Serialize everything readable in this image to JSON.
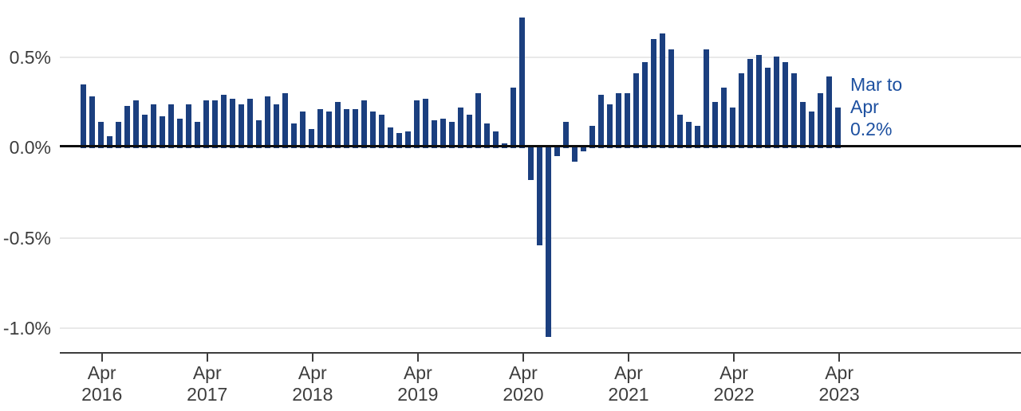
{
  "chart_data": {
    "type": "bar",
    "title": "",
    "unit": "%",
    "x": [
      "Feb 2016",
      "Mar 2016",
      "Apr 2016",
      "May 2016",
      "Jun 2016",
      "Jul 2016",
      "Aug 2016",
      "Sep 2016",
      "Oct 2016",
      "Nov 2016",
      "Dec 2016",
      "Jan 2017",
      "Feb 2017",
      "Mar 2017",
      "Apr 2017",
      "May 2017",
      "Jun 2017",
      "Jul 2017",
      "Aug 2017",
      "Sep 2017",
      "Oct 2017",
      "Nov 2017",
      "Dec 2017",
      "Jan 2018",
      "Feb 2018",
      "Mar 2018",
      "Apr 2018",
      "May 2018",
      "Jun 2018",
      "Jul 2018",
      "Aug 2018",
      "Sep 2018",
      "Oct 2018",
      "Nov 2018",
      "Dec 2018",
      "Jan 2019",
      "Feb 2019",
      "Mar 2019",
      "Apr 2019",
      "May 2019",
      "Jun 2019",
      "Jul 2019",
      "Aug 2019",
      "Sep 2019",
      "Oct 2019",
      "Nov 2019",
      "Dec 2019",
      "Jan 2020",
      "Feb 2020",
      "Mar 2020",
      "Apr 2020",
      "May 2020",
      "Jun 2020",
      "Jul 2020",
      "Aug 2020",
      "Sep 2020",
      "Oct 2020",
      "Nov 2020",
      "Dec 2020",
      "Jan 2021",
      "Feb 2021",
      "Mar 2021",
      "Apr 2021",
      "May 2021",
      "Jun 2021",
      "Jul 2021",
      "Aug 2021",
      "Sep 2021",
      "Oct 2021",
      "Nov 2021",
      "Dec 2021",
      "Jan 2022",
      "Feb 2022",
      "Mar 2022",
      "Apr 2022",
      "May 2022",
      "Jun 2022",
      "Jul 2022",
      "Aug 2022",
      "Sep 2022",
      "Oct 2022",
      "Nov 2022",
      "Dec 2022",
      "Jan 2023",
      "Feb 2023",
      "Mar 2023",
      "Apr 2023"
    ],
    "values": [
      0.35,
      0.28,
      0.14,
      0.06,
      0.14,
      0.23,
      0.26,
      0.18,
      0.24,
      0.17,
      0.24,
      0.16,
      0.24,
      0.14,
      0.26,
      0.26,
      0.29,
      0.27,
      0.24,
      0.27,
      0.15,
      0.28,
      0.24,
      0.3,
      0.13,
      0.2,
      0.1,
      0.21,
      0.2,
      0.25,
      0.21,
      0.21,
      0.26,
      0.2,
      0.18,
      0.11,
      0.08,
      0.09,
      0.26,
      0.27,
      0.15,
      0.16,
      0.14,
      0.22,
      0.18,
      0.3,
      0.13,
      0.09,
      0.02,
      0.33,
      0.72,
      -0.18,
      -0.54,
      -1.05,
      -0.05,
      0.14,
      -0.08,
      -0.02,
      0.12,
      0.29,
      0.24,
      0.3,
      0.3,
      0.41,
      0.47,
      0.6,
      0.63,
      0.54,
      0.18,
      0.14,
      0.12,
      0.54,
      0.25,
      0.33,
      0.22,
      0.41,
      0.49,
      0.51,
      0.44,
      0.5,
      0.47,
      0.41,
      0.25,
      0.2,
      0.3,
      0.39,
      0.22
    ],
    "yticks": [
      {
        "label": "0.5%",
        "value": 0.5
      },
      {
        "label": "0.0%",
        "value": 0.0
      },
      {
        "label": "-0.5%",
        "value": -0.5
      },
      {
        "label": "-1.0%",
        "value": -1.0
      }
    ],
    "xticks": [
      {
        "month": "Apr",
        "year": "2016"
      },
      {
        "month": "Apr",
        "year": "2017"
      },
      {
        "month": "Apr",
        "year": "2018"
      },
      {
        "month": "Apr",
        "year": "2019"
      },
      {
        "month": "Apr",
        "year": "2020"
      },
      {
        "month": "Apr",
        "year": "2021"
      },
      {
        "month": "Apr",
        "year": "2022"
      },
      {
        "month": "Apr",
        "year": "2023"
      }
    ],
    "ylim": [
      -1.15,
      0.78
    ],
    "grid": "horizontal gridlines at 0.5, -0.5, -1.0; solid black line at 0.0",
    "legend_position": "none",
    "annotation": {
      "lines": [
        "Mar to",
        "Apr",
        "0.2%"
      ],
      "text": "Mar to Apr 0.2%"
    },
    "colors": {
      "bar": "#1b3f7f",
      "annotation_text": "#1d50a0",
      "axis_text": "#3d3d3d",
      "gridline": "#e9e9e9",
      "zero_line": "#0e0e0e",
      "axis_line": "#3d3d3d"
    }
  }
}
